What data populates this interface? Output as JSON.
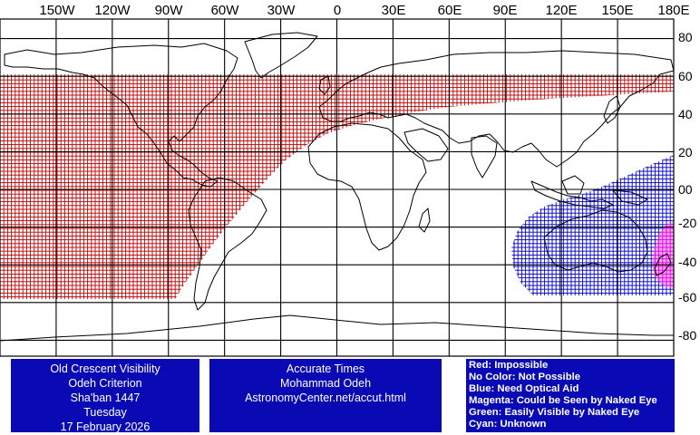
{
  "map": {
    "longitude_labels": [
      "150W",
      "120W",
      "90W",
      "60W",
      "30W",
      "0",
      "30E",
      "60E",
      "90E",
      "120E",
      "150E",
      "180E"
    ],
    "longitude_values": [
      -150,
      -120,
      -90,
      -60,
      -30,
      0,
      30,
      60,
      90,
      120,
      150,
      180
    ],
    "latitude_labels": [
      "80",
      "60",
      "40",
      "20",
      "00",
      "-20",
      "-40",
      "-60",
      "-80"
    ],
    "latitude_values": [
      80,
      60,
      40,
      20,
      0,
      -20,
      -40,
      -60,
      -80
    ],
    "lon_range": [
      -180,
      180
    ],
    "lat_range": [
      -90,
      90
    ],
    "grid_spacing_degrees": 30,
    "zones": [
      {
        "name": "impossible",
        "color": "#c00000",
        "lat_range": [
          -60,
          60
        ]
      },
      {
        "name": "optical-aid",
        "color": "#0000cc",
        "center": [
          148,
          -25
        ]
      },
      {
        "name": "naked-eye",
        "color": "#dd00dd",
        "center": [
          177,
          -40
        ]
      }
    ]
  },
  "left_box": {
    "lines": [
      "Old Crescent Visibility",
      "Odeh Criterion",
      "Sha'ban 1447",
      "Tuesday",
      "17 February 2026"
    ]
  },
  "middle_box": {
    "lines": [
      "Accurate Times",
      "Mohammad Odeh",
      "AstronomyCenter.net/accut.html"
    ]
  },
  "legend": {
    "lines": [
      "Red: Impossible",
      "No Color: Not Possible",
      "Blue: Need Optical Aid",
      "Magenta: Could be Seen by Naked Eye",
      "Green: Easily Visible by Naked Eye",
      "Cyan: Unknown"
    ]
  },
  "colors": {
    "box_background": "#0a0ab4",
    "red": "#c00000",
    "blue": "#0000cc",
    "magenta": "#dd00dd"
  }
}
